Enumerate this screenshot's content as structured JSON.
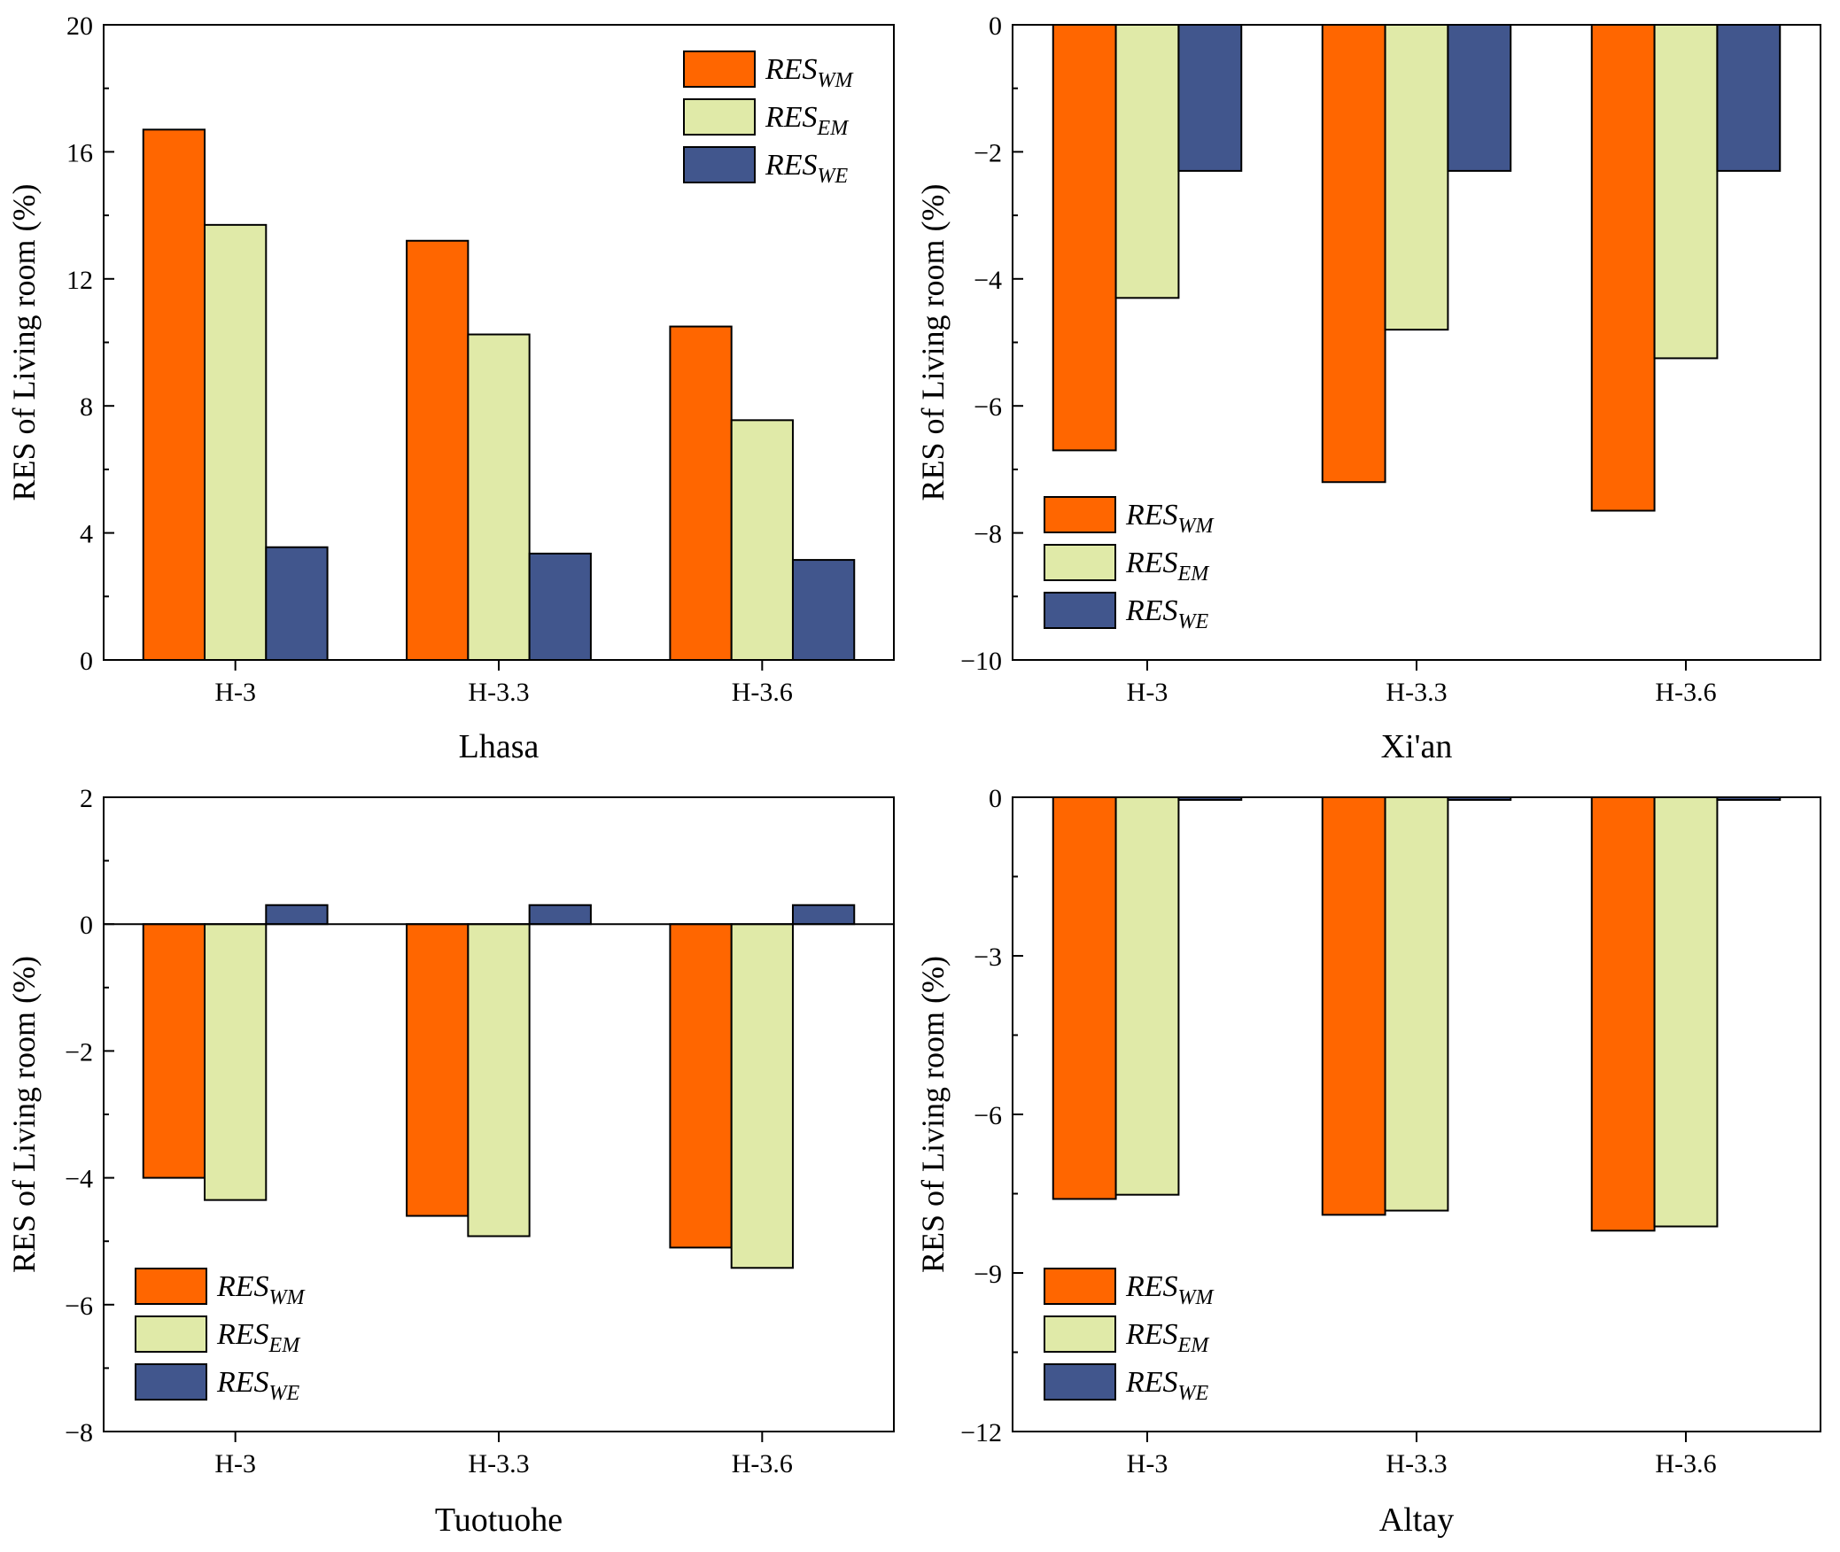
{
  "chart_data": [
    {
      "type": "bar",
      "title": "",
      "xlabel": "Lhasa",
      "ylabel": "RES of Living room (%)",
      "categories": [
        "H-3",
        "H-3.3",
        "H-3.6"
      ],
      "ylim": [
        0,
        20
      ],
      "yticks": [
        0,
        4,
        8,
        12,
        16,
        20
      ],
      "yticklabels": [
        "0",
        "4",
        "8",
        "12",
        "16",
        "20"
      ],
      "legend_position": "top-right",
      "series": [
        {
          "name": "RES_WM",
          "base": "RES",
          "sub": "WM",
          "color": "#FF6600",
          "values": [
            16.7,
            13.2,
            10.5
          ]
        },
        {
          "name": "RES_EM",
          "base": "RES",
          "sub": "EM",
          "color": "#E0EAA8",
          "values": [
            13.7,
            10.25,
            7.55
          ]
        },
        {
          "name": "RES_WE",
          "base": "RES",
          "sub": "WE",
          "color": "#41568D",
          "values": [
            3.55,
            3.35,
            3.15
          ]
        }
      ]
    },
    {
      "type": "bar",
      "title": "",
      "xlabel": "Xi'an",
      "ylabel": "RES of Living room (%)",
      "categories": [
        "H-3",
        "H-3.3",
        "H-3.6"
      ],
      "ylim": [
        -10,
        0
      ],
      "yticks": [
        -10,
        -8,
        -6,
        -4,
        -2,
        0
      ],
      "yticklabels": [
        "−10",
        "−8",
        "−6",
        "−4",
        "−2",
        "0"
      ],
      "legend_position": "bottom-left",
      "series": [
        {
          "name": "RES_WM",
          "base": "RES",
          "sub": "WM",
          "color": "#FF6600",
          "values": [
            -6.7,
            -7.2,
            -7.65
          ]
        },
        {
          "name": "RES_EM",
          "base": "RES",
          "sub": "EM",
          "color": "#E0EAA8",
          "values": [
            -4.3,
            -4.8,
            -5.25
          ]
        },
        {
          "name": "RES_WE",
          "base": "RES",
          "sub": "WE",
          "color": "#41568D",
          "values": [
            -2.3,
            -2.3,
            -2.3
          ]
        }
      ]
    },
    {
      "type": "bar",
      "title": "",
      "xlabel": "Tuotuohe",
      "ylabel": "RES of Living room (%)",
      "categories": [
        "H-3",
        "H-3.3",
        "H-3.6"
      ],
      "ylim": [
        -8,
        2
      ],
      "yticks": [
        -8,
        -6,
        -4,
        -2,
        0,
        2
      ],
      "yticklabels": [
        "−8",
        "−6",
        "−4",
        "−2",
        "0",
        "2"
      ],
      "legend_position": "bottom-left",
      "series": [
        {
          "name": "RES_WM",
          "base": "RES",
          "sub": "WM",
          "color": "#FF6600",
          "values": [
            -4.0,
            -4.6,
            -5.1
          ]
        },
        {
          "name": "RES_EM",
          "base": "RES",
          "sub": "EM",
          "color": "#E0EAA8",
          "values": [
            -4.35,
            -4.92,
            -5.42
          ]
        },
        {
          "name": "RES_WE",
          "base": "RES",
          "sub": "WE",
          "color": "#41568D",
          "values": [
            0.3,
            0.3,
            0.3
          ]
        }
      ]
    },
    {
      "type": "bar",
      "title": "",
      "xlabel": "Altay",
      "ylabel": "RES of Living room (%)",
      "categories": [
        "H-3",
        "H-3.3",
        "H-3.6"
      ],
      "ylim": [
        -12,
        0
      ],
      "yticks": [
        -12,
        -9,
        -6,
        -3,
        0
      ],
      "yticklabels": [
        "−12",
        "−9",
        "−6",
        "−3",
        "0"
      ],
      "legend_position": "bottom-left",
      "series": [
        {
          "name": "RES_WM",
          "base": "RES",
          "sub": "WM",
          "color": "#FF6600",
          "values": [
            -7.6,
            -7.9,
            -8.2
          ]
        },
        {
          "name": "RES_EM",
          "base": "RES",
          "sub": "EM",
          "color": "#E0EAA8",
          "values": [
            -7.52,
            -7.82,
            -8.12
          ]
        },
        {
          "name": "RES_WE",
          "base": "RES",
          "sub": "WE",
          "color": "#41568D",
          "values": [
            -0.05,
            -0.05,
            -0.05
          ]
        }
      ]
    }
  ]
}
